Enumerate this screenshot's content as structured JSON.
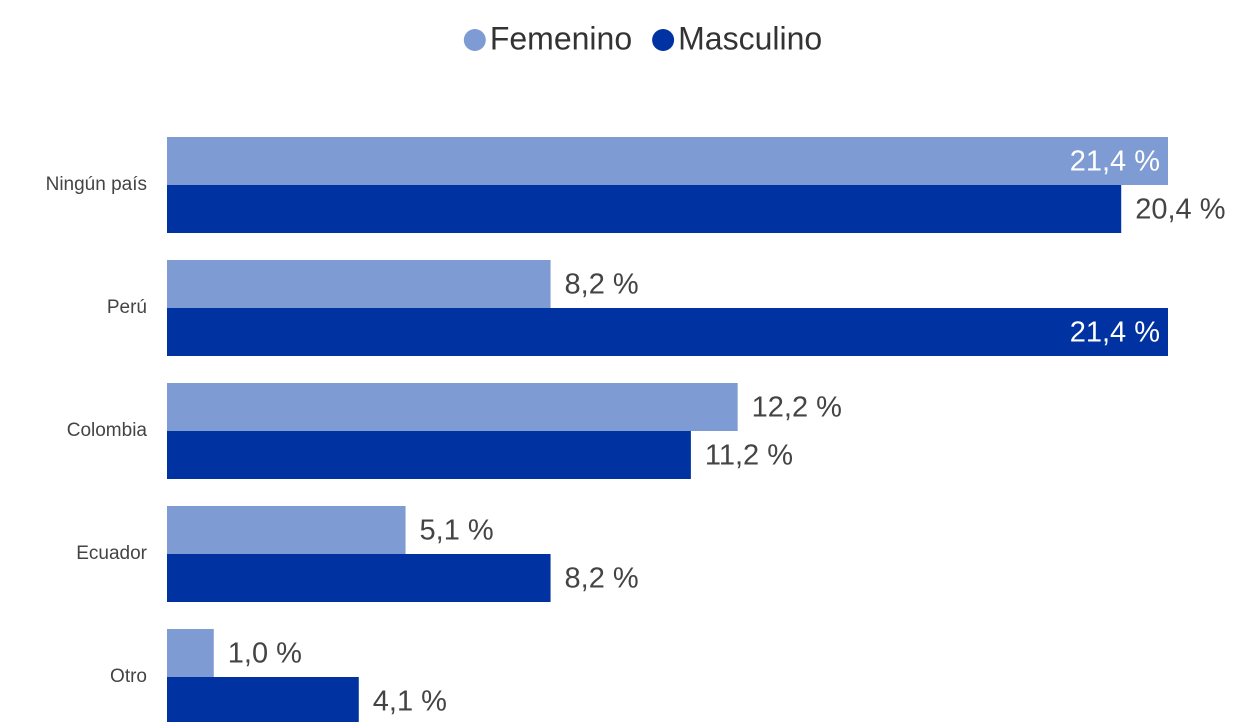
{
  "chart_data": {
    "type": "bar",
    "orientation": "horizontal",
    "categories": [
      "Ningún país",
      "Perú",
      "Colombia",
      "Ecuador",
      "Otro"
    ],
    "series": [
      {
        "name": "Femenino",
        "color": "#7f9bd3",
        "values": [
          21.4,
          8.2,
          12.2,
          5.1,
          1.0
        ],
        "value_labels": [
          "21,4 %",
          "8,2 %",
          "12,2 %",
          "5,1 %",
          "1,0 %"
        ]
      },
      {
        "name": "Masculino",
        "color": "#0033a1",
        "values": [
          20.4,
          21.4,
          11.2,
          8.2,
          4.1
        ],
        "value_labels": [
          "20,4 %",
          "21,4 %",
          "11,2 %",
          "8,2 %",
          "4,1 %"
        ]
      }
    ],
    "legend": "top"
  }
}
